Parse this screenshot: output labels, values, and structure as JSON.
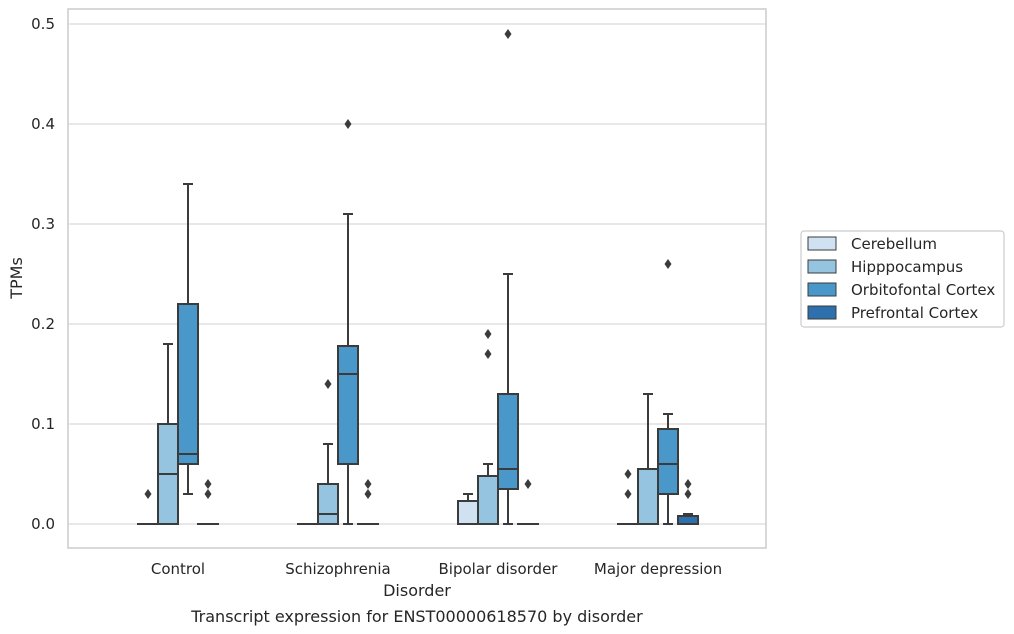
{
  "chart_data": {
    "type": "box",
    "title": "Transcript expression for ENST00000618570 by disorder",
    "xlabel": "Disorder",
    "ylabel": "TPMs",
    "ylim": [
      -0.024,
      0.515
    ],
    "yticks": [
      "0.0",
      "0.1",
      "0.2",
      "0.3",
      "0.4",
      "0.5"
    ],
    "grid": true,
    "legend_position": "right",
    "categories": [
      "Control",
      "Schizophrenia",
      "Bipolar disorder",
      "Major depression"
    ],
    "series": [
      {
        "name": "Cerebellum",
        "color": "#d0e1f2",
        "boxes": [
          {
            "q1": 0,
            "median": 0,
            "q3": 0,
            "whislo": 0,
            "whishi": 0,
            "fliers": [
              0.03
            ]
          },
          {
            "q1": 0,
            "median": 0,
            "q3": 0,
            "whislo": 0,
            "whishi": 0,
            "fliers": []
          },
          {
            "q1": 0,
            "median": 0,
            "q3": 0.023,
            "whislo": 0,
            "whishi": 0.03,
            "fliers": []
          },
          {
            "q1": 0,
            "median": 0,
            "q3": 0,
            "whislo": 0,
            "whishi": 0,
            "fliers": [
              0.03,
              0.05
            ]
          }
        ]
      },
      {
        "name": "Hipppocampus",
        "color": "#94c4df",
        "boxes": [
          {
            "q1": 0,
            "median": 0.05,
            "q3": 0.1,
            "whislo": 0,
            "whishi": 0.18,
            "fliers": []
          },
          {
            "q1": 0,
            "median": 0.01,
            "q3": 0.04,
            "whislo": 0,
            "whishi": 0.08,
            "fliers": [
              0.14
            ]
          },
          {
            "q1": 0,
            "median": 0.048,
            "q3": 0.048,
            "whislo": 0,
            "whishi": 0.06,
            "fliers": [
              0.17,
              0.19
            ]
          },
          {
            "q1": 0,
            "median": 0.055,
            "q3": 0.055,
            "whislo": 0,
            "whishi": 0.13,
            "fliers": []
          }
        ]
      },
      {
        "name": "Orbitofontal Cortex",
        "color": "#4a98c9",
        "boxes": [
          {
            "q1": 0.06,
            "median": 0.07,
            "q3": 0.22,
            "whislo": 0.03,
            "whishi": 0.34,
            "fliers": []
          },
          {
            "q1": 0.06,
            "median": 0.15,
            "q3": 0.178,
            "whislo": 0,
            "whishi": 0.31,
            "fliers": [
              0.4
            ]
          },
          {
            "q1": 0.035,
            "median": 0.055,
            "q3": 0.13,
            "whislo": 0,
            "whishi": 0.25,
            "fliers": [
              0.49
            ]
          },
          {
            "q1": 0.03,
            "median": 0.06,
            "q3": 0.095,
            "whislo": 0,
            "whishi": 0.11,
            "fliers": [
              0.26
            ]
          }
        ]
      },
      {
        "name": "Prefrontal Cortex",
        "color": "#2e6fae",
        "boxes": [
          {
            "q1": 0,
            "median": 0,
            "q3": 0,
            "whislo": 0,
            "whishi": 0,
            "fliers": [
              0.03,
              0.04
            ]
          },
          {
            "q1": 0,
            "median": 0,
            "q3": 0,
            "whislo": 0,
            "whishi": 0,
            "fliers": [
              0.03,
              0.04
            ]
          },
          {
            "q1": 0,
            "median": 0,
            "q3": 0,
            "whislo": 0,
            "whishi": 0,
            "fliers": [
              0.04
            ]
          },
          {
            "q1": 0,
            "median": 0,
            "q3": 0.008,
            "whislo": 0,
            "whishi": 0.01,
            "fliers": [
              0.03,
              0.04
            ]
          }
        ]
      }
    ]
  }
}
